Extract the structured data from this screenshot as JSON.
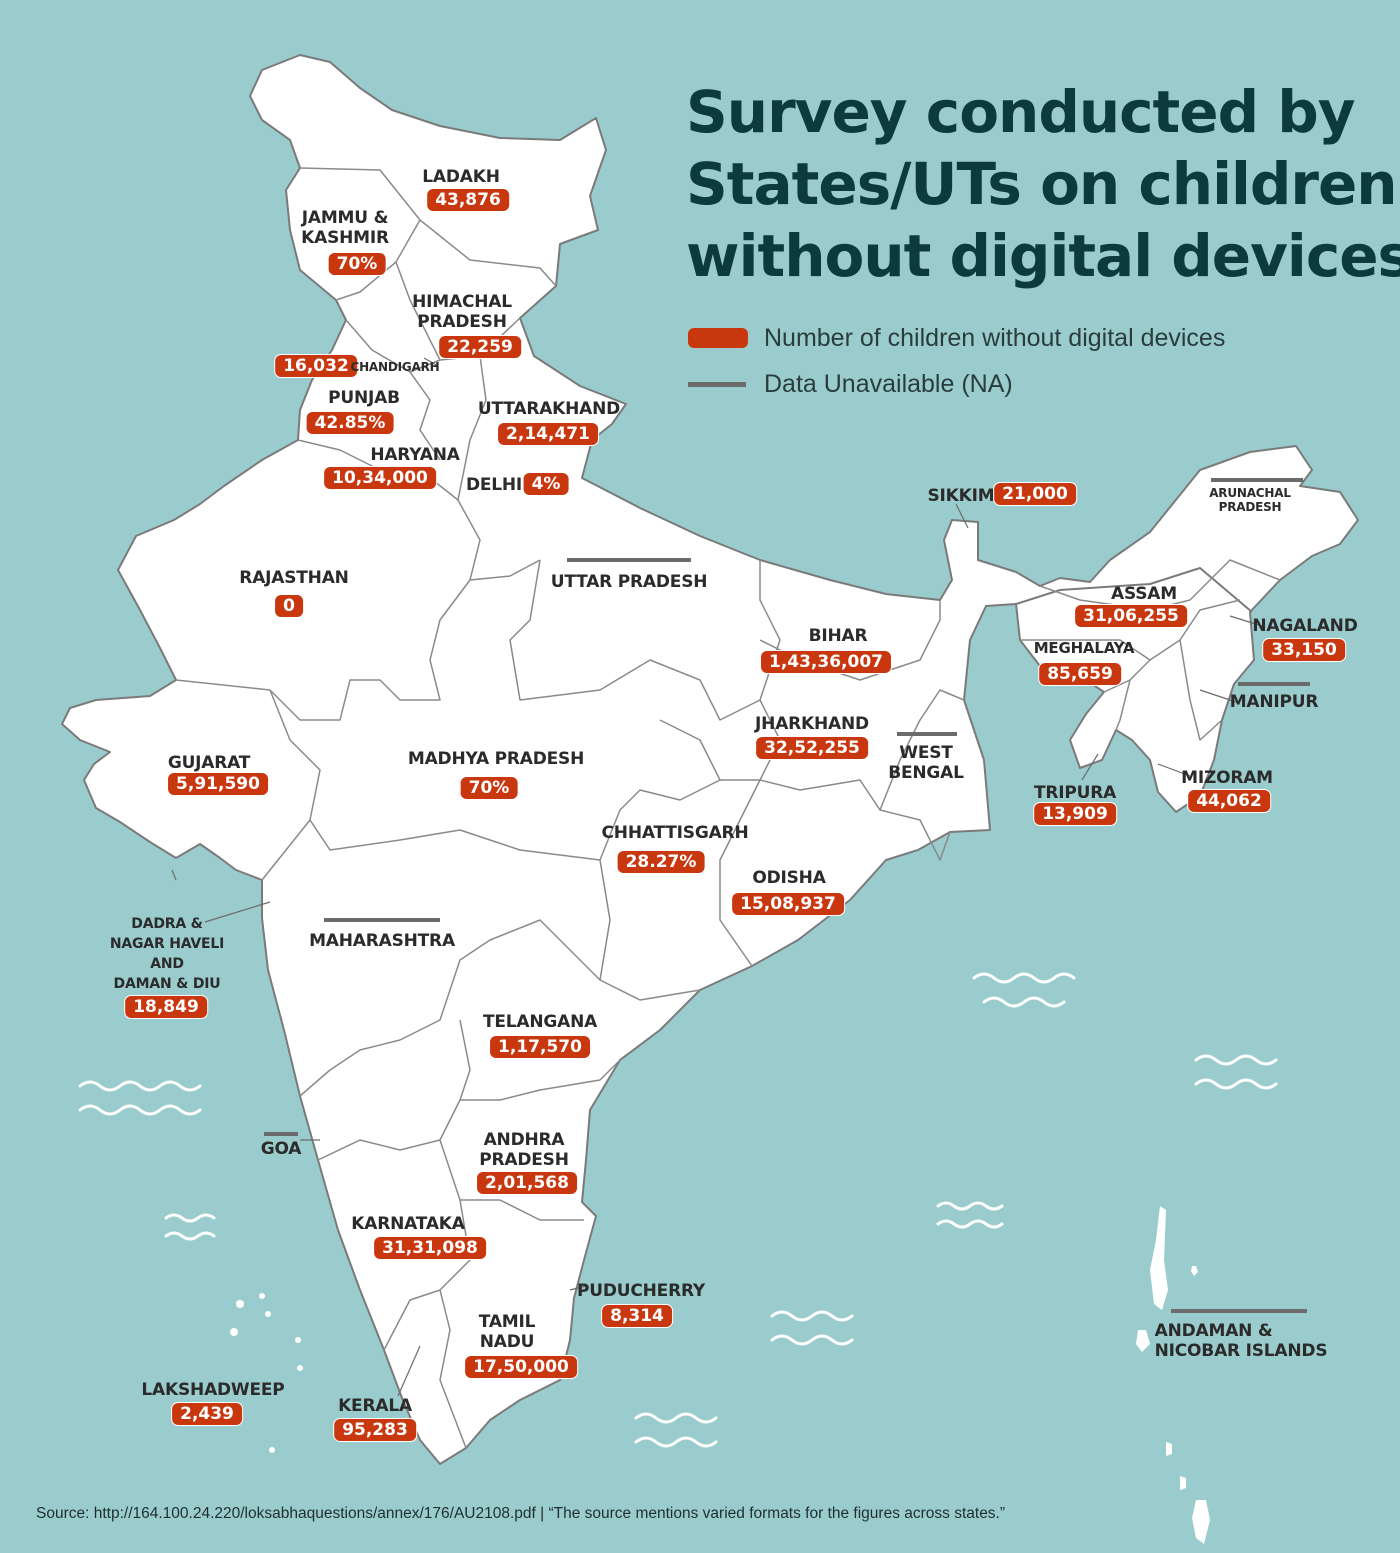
{
  "title": {
    "line1": "Survey conducted by",
    "line2": "States/UTs on children",
    "line3": "without digital devices"
  },
  "legend": {
    "value_label": "Number of children without digital devices",
    "na_label": "Data Unavailable (NA)"
  },
  "colors": {
    "sea": "#9bcccd",
    "land": "#ffffff",
    "border": "#7a7a7a",
    "value_pill": "#c9370f",
    "na_bar": "#6b6b6b",
    "title": "#0d3a3b"
  },
  "regions": [
    {
      "id": "ladakh",
      "name": "LADAKH",
      "value": "43,876"
    },
    {
      "id": "jammu-kashmir",
      "name": "JAMMU &\nKASHMIR",
      "value": "70%"
    },
    {
      "id": "himachal-pradesh",
      "name": "HIMACHAL\nPRADESH",
      "value": "22,259"
    },
    {
      "id": "chandigarh",
      "name": "CHANDIGARH",
      "value": "16,032"
    },
    {
      "id": "punjab",
      "name": "PUNJAB",
      "value": "42.85%"
    },
    {
      "id": "uttarakhand",
      "name": "UTTARAKHAND",
      "value": "2,14,471"
    },
    {
      "id": "haryana",
      "name": "HARYANA",
      "value": "10,34,000"
    },
    {
      "id": "delhi",
      "name": "DELHI",
      "value": "4%"
    },
    {
      "id": "rajasthan",
      "name": "RAJASTHAN",
      "value": "0"
    },
    {
      "id": "uttar-pradesh",
      "name": "UTTAR PRADESH",
      "value": null
    },
    {
      "id": "sikkim",
      "name": "SIKKIM",
      "value": "21,000"
    },
    {
      "id": "arunachal-pradesh",
      "name": "ARUNACHAL\nPRADESH",
      "value": null
    },
    {
      "id": "assam",
      "name": "ASSAM",
      "value": "31,06,255"
    },
    {
      "id": "nagaland",
      "name": "NAGALAND",
      "value": "33,150"
    },
    {
      "id": "meghalaya",
      "name": "MEGHALAYA",
      "value": "85,659"
    },
    {
      "id": "manipur",
      "name": "MANIPUR",
      "value": null
    },
    {
      "id": "bihar",
      "name": "BIHAR",
      "value": "1,43,36,007"
    },
    {
      "id": "jharkhand",
      "name": "JHARKHAND",
      "value": "32,52,255"
    },
    {
      "id": "west-bengal",
      "name": "WEST\nBENGAL",
      "value": null
    },
    {
      "id": "tripura",
      "name": "TRIPURA",
      "value": "13,909"
    },
    {
      "id": "mizoram",
      "name": "MIZORAM",
      "value": "44,062"
    },
    {
      "id": "gujarat",
      "name": "GUJARAT",
      "value": "5,91,590"
    },
    {
      "id": "madhya-pradesh",
      "name": "MADHYA PRADESH",
      "value": "70%"
    },
    {
      "id": "chhattisgarh",
      "name": "CHHATTISGARH",
      "value": "28.27%"
    },
    {
      "id": "odisha",
      "name": "ODISHA",
      "value": "15,08,937"
    },
    {
      "id": "dadra-daman",
      "name": "DADRA &\nNAGAR HAVELI\nAND\nDAMAN & DIU",
      "value": "18,849"
    },
    {
      "id": "maharashtra",
      "name": "MAHARASHTRA",
      "value": null
    },
    {
      "id": "telangana",
      "name": "TELANGANA",
      "value": "1,17,570"
    },
    {
      "id": "goa",
      "name": "GOA",
      "value": null
    },
    {
      "id": "andhra-pradesh",
      "name": "ANDHRA\nPRADESH",
      "value": "2,01,568"
    },
    {
      "id": "karnataka",
      "name": "KARNATAKA",
      "value": "31,31,098"
    },
    {
      "id": "puducherry",
      "name": "PUDUCHERRY",
      "value": "8,314"
    },
    {
      "id": "tamil-nadu",
      "name": "TAMIL\nNADU",
      "value": "17,50,000"
    },
    {
      "id": "andaman-nicobar",
      "name": "ANDAMAN &\nNICOBAR ISLANDS",
      "value": null
    },
    {
      "id": "lakshadweep",
      "name": "LAKSHADWEEP",
      "value": "2,439"
    },
    {
      "id": "kerala",
      "name": "KERALA",
      "value": "95,283"
    }
  ],
  "source": "Source: http://164.100.24.220/loksabhaquestions/annex/176/AU2108.pdf | “The source mentions varied formats for the figures across states.”"
}
